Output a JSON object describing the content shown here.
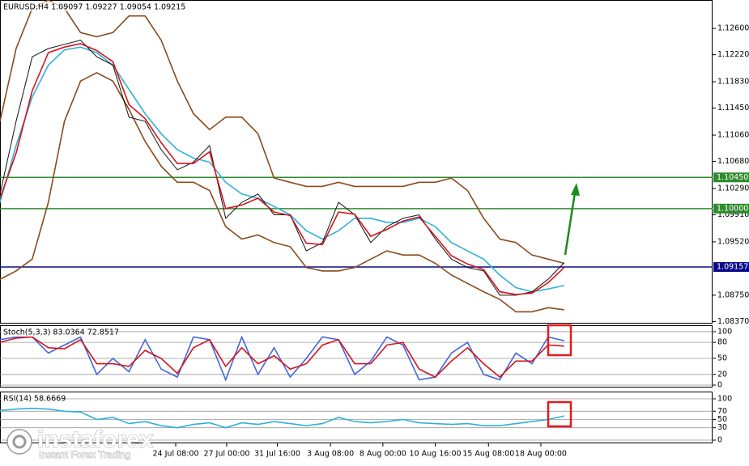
{
  "chart_data": [
    {
      "type": "line",
      "title": "EURUSD,H4  1.09097 1.09227 1.09054 1.09215",
      "x": [
        0,
        1,
        2,
        3,
        4,
        5,
        6,
        7,
        8,
        9,
        10,
        11,
        12,
        13,
        14,
        15,
        16,
        17,
        18,
        19,
        20,
        21,
        22,
        23,
        24,
        25,
        26,
        27,
        28,
        29,
        30,
        31,
        32,
        33,
        34,
        35
      ],
      "xlim": [
        0,
        44.2
      ],
      "ylim": [
        1.0834,
        1.1301
      ],
      "yticks": [
        {
          "value": 1.126,
          "label": "1.12600"
        },
        {
          "value": 1.1222,
          "label": "1.12220"
        },
        {
          "value": 1.1183,
          "label": "1.11830"
        },
        {
          "value": 1.1145,
          "label": "1.11450"
        },
        {
          "value": 1.1106,
          "label": "1.11060"
        },
        {
          "value": 1.1068,
          "label": "1.10680"
        },
        {
          "value": 1.1029,
          "label": "1.10290"
        },
        {
          "value": 1.0991,
          "label": "1.09910"
        },
        {
          "value": 1.0952,
          "label": "1.09520"
        },
        {
          "value": 1.0875,
          "label": "1.08750"
        },
        {
          "value": 1.0837,
          "label": "1.08370"
        }
      ],
      "grid": false,
      "series": [
        {
          "color": "#8b4a1c",
          "values": [
            1.1126,
            1.1231,
            1.1289,
            1.1301,
            1.1289,
            1.1254,
            1.1248,
            1.1254,
            1.1278,
            1.1278,
            1.1243,
            1.1184,
            1.1137,
            1.1114,
            1.1132,
            1.1132,
            1.1108,
            1.1044,
            1.1038,
            1.1032,
            1.1032,
            1.1038,
            1.1032,
            1.1032,
            1.1032,
            1.1032,
            1.1038,
            1.1038,
            1.1044,
            1.1026,
            1.0986,
            1.0956,
            1.0951,
            1.0933,
            1.0927,
            1.0921
          ]
        },
        {
          "color": "#8b4a1c",
          "values": [
            1.0898,
            1.091,
            1.0927,
            1.1009,
            1.1126,
            1.1184,
            1.1196,
            1.1184,
            1.1143,
            1.1097,
            1.1061,
            1.1038,
            1.1038,
            1.1026,
            1.0974,
            1.0956,
            1.0962,
            1.0951,
            1.0945,
            1.0915,
            1.091,
            1.091,
            1.0915,
            1.0927,
            1.0939,
            1.0933,
            1.0933,
            1.0921,
            1.0904,
            1.0892,
            1.088,
            1.0869,
            1.0851,
            1.0851,
            1.0857,
            1.0854
          ]
        },
        {
          "color": "#2fb2d8",
          "values": [
            1.1009,
            1.1091,
            1.1161,
            1.1207,
            1.1229,
            1.1233,
            1.1225,
            1.1207,
            1.1172,
            1.1137,
            1.1108,
            1.1085,
            1.1073,
            1.1067,
            1.1038,
            1.1021,
            1.1015,
            1.1003,
            1.0991,
            1.0968,
            1.0956,
            1.0968,
            1.0986,
            1.0986,
            1.098,
            1.098,
            1.0986,
            1.0974,
            1.0951,
            1.0939,
            1.0927,
            1.0904,
            1.0886,
            1.088,
            1.0884,
            1.0889
          ]
        },
        {
          "color": "#111111",
          "values": [
            1.1021,
            1.1126,
            1.1219,
            1.1231,
            1.1237,
            1.1243,
            1.1219,
            1.1207,
            1.1132,
            1.1126,
            1.1085,
            1.1056,
            1.1067,
            1.1091,
            1.0986,
            1.1009,
            1.1021,
            1.0991,
            1.0991,
            1.0939,
            1.0951,
            1.1009,
            1.0991,
            1.0951,
            1.0974,
            1.0986,
            1.0991,
            1.0956,
            1.0927,
            1.0915,
            1.091,
            1.0875,
            1.0875,
            1.088,
            1.0898,
            1.0922
          ]
        },
        {
          "color": "#d4141b",
          "values": [
            1.1015,
            1.108,
            1.117,
            1.1225,
            1.1233,
            1.1238,
            1.1228,
            1.1212,
            1.115,
            1.113,
            1.1095,
            1.1065,
            1.1065,
            1.1082,
            1.1,
            1.1005,
            1.1015,
            1.0995,
            1.099,
            1.095,
            1.0948,
            1.0995,
            1.0992,
            1.096,
            1.097,
            1.0982,
            1.0988,
            1.096,
            1.0932,
            1.092,
            1.0912,
            1.088,
            1.0876,
            1.0878,
            1.0893,
            1.0915
          ]
        }
      ],
      "hlines": [
        {
          "value": 1.1045,
          "label": "1.10450",
          "color": "#2e8b2e"
        },
        {
          "value": 1.1,
          "label": "1.10000",
          "color": "#2e8b2e"
        },
        {
          "value": 1.09157,
          "label": "1.09157",
          "color": "#0a0a8c"
        }
      ]
    },
    {
      "type": "line",
      "title": "Stoch(5,3,3) 83.0364 72.8517",
      "x": [
        0,
        1,
        2,
        3,
        4,
        5,
        6,
        7,
        8,
        9,
        10,
        11,
        12,
        13,
        14,
        15,
        16,
        17,
        18,
        19,
        20,
        21,
        22,
        23,
        24,
        25,
        26,
        27,
        28,
        29,
        30,
        31,
        32,
        33,
        34,
        35
      ],
      "xlim": [
        0,
        44.2
      ],
      "ylim": [
        -4.5,
        112
      ],
      "yticks": [
        100,
        80,
        50,
        20,
        0
      ],
      "grid": true,
      "series": [
        {
          "color": "#4466dd",
          "values": [
            85,
            90,
            90,
            60,
            75,
            90,
            20,
            50,
            25,
            85,
            30,
            15,
            90,
            85,
            10,
            90,
            20,
            70,
            15,
            50,
            90,
            85,
            20,
            45,
            90,
            75,
            10,
            15,
            60,
            80,
            20,
            10,
            60,
            40,
            90,
            83
          ]
        },
        {
          "color": "#d4141b",
          "values": [
            80,
            88,
            90,
            70,
            68,
            85,
            40,
            40,
            35,
            65,
            50,
            22,
            70,
            85,
            35,
            70,
            40,
            55,
            30,
            40,
            75,
            85,
            40,
            40,
            75,
            80,
            30,
            15,
            45,
            70,
            40,
            15,
            45,
            45,
            75,
            73
          ]
        }
      ]
    },
    {
      "type": "line",
      "title": "RSI(14) 58.6669",
      "x": [
        0,
        1,
        2,
        3,
        4,
        5,
        6,
        7,
        8,
        9,
        10,
        11,
        12,
        13,
        14,
        15,
        16,
        17,
        18,
        19,
        20,
        21,
        22,
        23,
        24,
        25,
        26,
        27,
        28,
        29,
        30,
        31,
        32,
        33,
        34,
        35
      ],
      "xlim": [
        0,
        44.2
      ],
      "ylim": [
        -7.8,
        117.6
      ],
      "yticks": [
        100,
        70,
        50,
        30,
        0
      ],
      "grid": true,
      "xticks": [
        {
          "value": 10.9,
          "label": "24 Jul 08:00"
        },
        {
          "value": 14.06,
          "label": "27 Jul 00:00"
        },
        {
          "value": 17.2,
          "label": "31 Jul 16:00"
        },
        {
          "value": 20.5,
          "label": "3 Aug 08:00"
        },
        {
          "value": 23.75,
          "label": "8 Aug 00:00"
        },
        {
          "value": 27,
          "label": "10 Aug 16:00"
        },
        {
          "value": 30.3,
          "label": "15 Aug 08:00"
        },
        {
          "value": 33.55,
          "label": "18 Aug 00:00"
        }
      ],
      "series": [
        {
          "color": "#2fb2d8",
          "values": [
            72,
            75,
            77,
            75,
            70,
            68,
            50,
            55,
            40,
            45,
            35,
            30,
            38,
            42,
            30,
            42,
            38,
            45,
            40,
            35,
            40,
            55,
            45,
            42,
            45,
            50,
            42,
            40,
            38,
            40,
            35,
            35,
            40,
            45,
            50,
            58.7
          ]
        }
      ]
    }
  ],
  "watermark": {
    "brand": "instaforex",
    "tagline": "Instant Forex Trading"
  }
}
